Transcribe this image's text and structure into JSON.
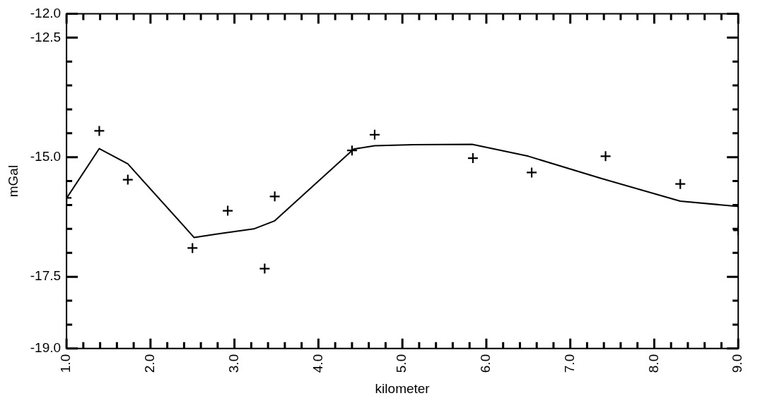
{
  "chart_data": {
    "type": "line",
    "xlabel": "kilometer",
    "ylabel": "mGal",
    "xlim": [
      1.0,
      9.0
    ],
    "ylim": [
      -19.0,
      -12.0
    ],
    "xticks": [
      {
        "value": 1.0,
        "label": "1.0"
      },
      {
        "value": 1.2,
        "label": null
      },
      {
        "value": 1.4,
        "label": null
      },
      {
        "value": 1.6,
        "label": null
      },
      {
        "value": 1.8,
        "label": null
      },
      {
        "value": 2.0,
        "label": "2.0"
      },
      {
        "value": 2.2,
        "label": null
      },
      {
        "value": 2.4,
        "label": null
      },
      {
        "value": 2.6,
        "label": null
      },
      {
        "value": 2.8,
        "label": null
      },
      {
        "value": 3.0,
        "label": "3.0"
      },
      {
        "value": 3.2,
        "label": null
      },
      {
        "value": 3.4,
        "label": null
      },
      {
        "value": 3.6,
        "label": null
      },
      {
        "value": 3.8,
        "label": null
      },
      {
        "value": 4.0,
        "label": "4.0"
      },
      {
        "value": 4.2,
        "label": null
      },
      {
        "value": 4.4,
        "label": null
      },
      {
        "value": 4.6,
        "label": null
      },
      {
        "value": 4.8,
        "label": null
      },
      {
        "value": 5.0,
        "label": "5.0"
      },
      {
        "value": 5.2,
        "label": null
      },
      {
        "value": 5.4,
        "label": null
      },
      {
        "value": 5.6,
        "label": null
      },
      {
        "value": 5.8,
        "label": null
      },
      {
        "value": 6.0,
        "label": "6.0"
      },
      {
        "value": 6.2,
        "label": null
      },
      {
        "value": 6.4,
        "label": null
      },
      {
        "value": 6.6,
        "label": null
      },
      {
        "value": 6.8,
        "label": null
      },
      {
        "value": 7.0,
        "label": "7.0"
      },
      {
        "value": 7.2,
        "label": null
      },
      {
        "value": 7.4,
        "label": null
      },
      {
        "value": 7.6,
        "label": null
      },
      {
        "value": 7.8,
        "label": null
      },
      {
        "value": 8.0,
        "label": "8.0"
      },
      {
        "value": 8.2,
        "label": null
      },
      {
        "value": 8.4,
        "label": null
      },
      {
        "value": 8.6,
        "label": null
      },
      {
        "value": 8.8,
        "label": null
      },
      {
        "value": 9.0,
        "label": "9.0"
      }
    ],
    "yticks": [
      {
        "value": -19.0,
        "label": "-19.0"
      },
      {
        "value": -18.5,
        "label": null
      },
      {
        "value": -18.0,
        "label": null
      },
      {
        "value": -17.5,
        "label": "-17.5"
      },
      {
        "value": -17.0,
        "label": null
      },
      {
        "value": -16.5,
        "label": null
      },
      {
        "value": -16.0,
        "label": null
      },
      {
        "value": -15.5,
        "label": null
      },
      {
        "value": -15.0,
        "label": "-15.0"
      },
      {
        "value": -14.5,
        "label": null
      },
      {
        "value": -14.0,
        "label": null
      },
      {
        "value": -13.5,
        "label": null
      },
      {
        "value": -13.0,
        "label": null
      },
      {
        "value": -12.5,
        "label": "-12.5"
      },
      {
        "value": -12.0,
        "label": "-12.0"
      }
    ],
    "grid": false,
    "legend": false,
    "series": [
      {
        "type": "scatter",
        "marker": "cross",
        "color": "#000000",
        "x": [
          1.0,
          1.39,
          1.73,
          2.5,
          2.92,
          3.36,
          3.48,
          4.4,
          4.67,
          5.84,
          6.54,
          7.42,
          8.31,
          9.0
        ],
        "values": [
          -15.85,
          -14.45,
          -15.47,
          -16.9,
          -16.12,
          -17.33,
          -15.82,
          -14.86,
          -14.53,
          -15.02,
          -15.32,
          -14.98,
          -15.56,
          -16.53
        ]
      },
      {
        "type": "line",
        "marker": "none",
        "line_style": "solid",
        "color": "#000000",
        "x": [
          1.0,
          1.39,
          1.73,
          2.52,
          2.81,
          3.23,
          3.48,
          4.42,
          4.67,
          5.13,
          5.83,
          6.5,
          7.36,
          8.31,
          9.0
        ],
        "values": [
          -15.86,
          -14.82,
          -15.14,
          -16.68,
          -16.6,
          -16.5,
          -16.33,
          -14.83,
          -14.76,
          -14.74,
          -14.73,
          -14.98,
          -15.44,
          -15.92,
          -16.03
        ]
      }
    ]
  }
}
